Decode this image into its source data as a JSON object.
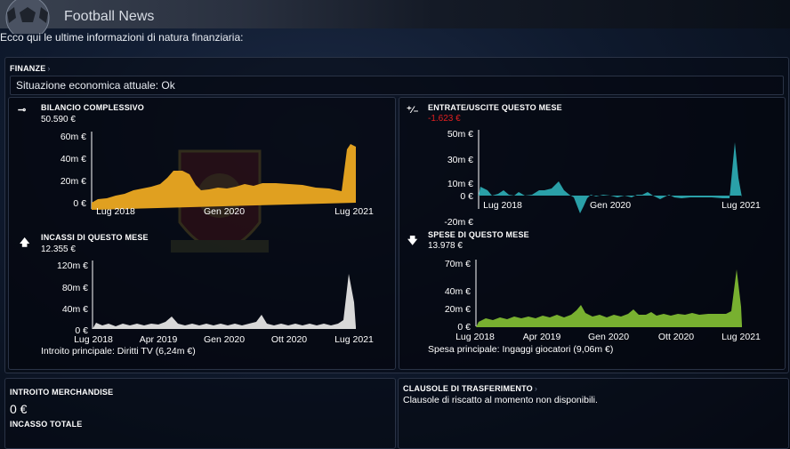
{
  "app": {
    "title": "Football News",
    "intro": "Ecco qui le ultime informazioni di natura finanziaria:"
  },
  "finanze": {
    "header": "FINANZE",
    "status": "Situazione economica attuale: Ok"
  },
  "bilancio": {
    "title": "BILANCIO COMPLESSIVO",
    "value": "50.590 €",
    "icon": "scale-icon",
    "chart": {
      "type": "area",
      "y_ticks": [
        "60m €",
        "40m €",
        "20m €",
        "0 €"
      ],
      "x_ticks": [
        "Lug 2018",
        "Gen 2020",
        "Lug 2021"
      ]
    }
  },
  "entrate_uscite": {
    "title": "ENTRATE/USCITE QUESTO MESE",
    "value": "-1.623 €",
    "icon": "percent-icon",
    "chart": {
      "type": "area",
      "y_ticks": [
        "50m €",
        "30m €",
        "10m €",
        "0 €",
        "-20m €"
      ],
      "x_ticks": [
        "Lug 2018",
        "Gen 2020",
        "Lug 2021"
      ]
    }
  },
  "incassi": {
    "title": "INCASSI DI QUESTO MESE",
    "value": "12.355 €",
    "icon": "arrow-up-icon",
    "chart": {
      "type": "area",
      "y_ticks": [
        "120m €",
        "80m €",
        "40m €",
        "0 €"
      ],
      "x_ticks": [
        "Lug 2018",
        "Apr 2019",
        "Gen 2020",
        "Ott 2020",
        "Lug 2021"
      ]
    },
    "footer": "Introito principale:  Diritti TV (6,24m €)"
  },
  "spese": {
    "title": "SPESE DI QUESTO MESE",
    "value": "13.978 €",
    "icon": "arrow-down-icon",
    "chart": {
      "type": "area",
      "y_ticks": [
        "70m €",
        "40m €",
        "20m €",
        "0 €"
      ],
      "x_ticks": [
        "Lug 2018",
        "Apr 2019",
        "Gen 2020",
        "Ott 2020",
        "Lug 2021"
      ]
    },
    "footer": "Spesa principale:  Ingaggi giocatori (9,06m €)"
  },
  "merch": {
    "title": "INTROITO MERCHANDISE",
    "value": "0 €",
    "total_label": "INCASSO TOTALE"
  },
  "clausole": {
    "title": "CLAUSOLE DI TRASFERIMENTO",
    "text": "Clausole di riscatto al momento non disponibili."
  },
  "colors": {
    "bilancio": "#e0a020",
    "entrate": "#2aa0a8",
    "incassi": "#d8d8d8",
    "spese": "#78b030",
    "negative": "#e02020"
  }
}
